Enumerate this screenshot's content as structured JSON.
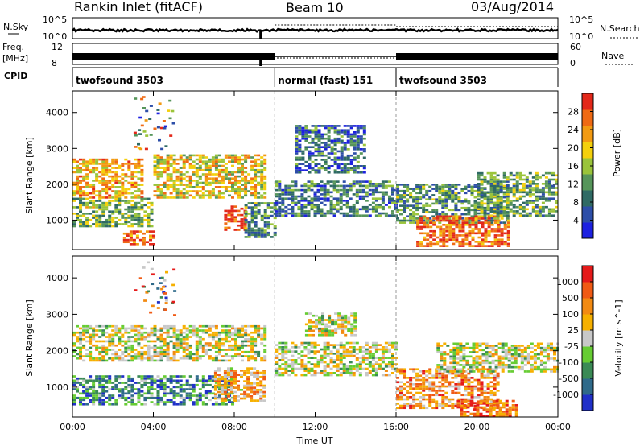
{
  "header": {
    "station": "Rankin Inlet (fitACF)",
    "beam": "Beam 10",
    "date": "03/Aug/2014"
  },
  "strip_labels": {
    "nsky": "N.Sky",
    "freq": "Freq.",
    "freq_unit": "[MHz]",
    "cpid": "CPID",
    "nsearch": "N.Search",
    "nave": "Nave"
  },
  "strip_ticks": {
    "nsky_left": [
      "10^5",
      "10^0"
    ],
    "nsky_right": [
      "10^5",
      "10^0"
    ],
    "freq_left": [
      "12",
      "8"
    ],
    "nave_right": [
      "60",
      "0"
    ]
  },
  "modes": [
    {
      "name": "twofsound 3503",
      "start": 0,
      "end": 10
    },
    {
      "name": "normal (fast) 151",
      "start": 10,
      "end": 16
    },
    {
      "name": "twofsound 3503",
      "start": 16,
      "end": 24
    }
  ],
  "chart_data": [
    {
      "type": "heatmap",
      "title": "Power",
      "xlabel": "",
      "ylabel": "Slant Range [km]",
      "xlim": [
        0,
        24
      ],
      "ylim": [
        180,
        4600
      ],
      "xticks": [
        0,
        4,
        8,
        12,
        16,
        20,
        24
      ],
      "yticks": [
        1000,
        2000,
        3000,
        4000
      ],
      "colorbar": {
        "label": "Power [dB]",
        "range": [
          0,
          32
        ],
        "ticks": [
          "4",
          "8",
          "12",
          "16",
          "20",
          "24",
          "28"
        ],
        "colors": [
          "#1d21e0",
          "#2d4ea8",
          "#2f6a64",
          "#56955a",
          "#9ac43a",
          "#f4d00c",
          "#f29a12",
          "#ef6a14",
          "#e3281a"
        ]
      },
      "echo_regions": [
        {
          "hours": [
            0.0,
            3.5
          ],
          "range_km": [
            1600,
            2700
          ],
          "level": 0.7
        },
        {
          "hours": [
            0.0,
            4.0
          ],
          "range_km": [
            800,
            1600
          ],
          "level": 0.45
        },
        {
          "hours": [
            2.5,
            4.0
          ],
          "range_km": [
            300,
            700
          ],
          "level": 0.85
        },
        {
          "hours": [
            4.0,
            9.5
          ],
          "range_km": [
            1600,
            2800
          ],
          "level": 0.6
        },
        {
          "hours": [
            7.5,
            8.5
          ],
          "range_km": [
            700,
            1400
          ],
          "level": 0.9
        },
        {
          "hours": [
            8.5,
            10.0
          ],
          "range_km": [
            500,
            1500
          ],
          "level": 0.35
        },
        {
          "hours": [
            10.0,
            16.0
          ],
          "range_km": [
            1100,
            2100
          ],
          "level": 0.3
        },
        {
          "hours": [
            11.0,
            14.5
          ],
          "range_km": [
            2300,
            3600
          ],
          "level": 0.25
        },
        {
          "hours": [
            16.0,
            21.5
          ],
          "range_km": [
            900,
            2000
          ],
          "level": 0.35
        },
        {
          "hours": [
            17.0,
            21.5
          ],
          "range_km": [
            250,
            1100
          ],
          "level": 0.85
        },
        {
          "hours": [
            20.0,
            24.0
          ],
          "range_km": [
            1100,
            2300
          ],
          "level": 0.4
        }
      ]
    },
    {
      "type": "heatmap",
      "title": "Velocity",
      "xlabel": "Time UT",
      "ylabel": "Slant Range [km]",
      "xlim": [
        0,
        24
      ],
      "ylim": [
        180,
        4600
      ],
      "xticks": [
        0,
        4,
        8,
        12,
        16,
        20,
        24
      ],
      "xtick_labels": [
        "00:00",
        "04:00",
        "08:00",
        "12:00",
        "16:00",
        "20:00",
        "00:00"
      ],
      "yticks": [
        1000,
        2000,
        3000,
        4000
      ],
      "colorbar": {
        "label": "Velocity [m s^-1]",
        "ticks": [
          "1000",
          "500",
          "100",
          "25",
          "-25",
          "-100",
          "-500",
          "-1000"
        ],
        "colors": [
          "#2030c8",
          "#2f6a8a",
          "#3a8a55",
          "#66cc33",
          "#c8c8c8",
          "#f6b000",
          "#f28a12",
          "#f05a14",
          "#e51a1a"
        ]
      },
      "echo_regions": [
        {
          "hours": [
            0.0,
            9.5
          ],
          "range_km": [
            1700,
            2700
          ],
          "level": 0.5
        },
        {
          "hours": [
            0.0,
            8.0
          ],
          "range_km": [
            500,
            1300
          ],
          "level": 0.25
        },
        {
          "hours": [
            7.0,
            9.5
          ],
          "range_km": [
            600,
            1500
          ],
          "level": 0.65
        },
        {
          "hours": [
            10.0,
            16.0
          ],
          "range_km": [
            1300,
            2200
          ],
          "level": 0.5
        },
        {
          "hours": [
            11.5,
            14.0
          ],
          "range_km": [
            2400,
            3000
          ],
          "level": 0.5
        },
        {
          "hours": [
            16.0,
            21.0
          ],
          "range_km": [
            400,
            1500
          ],
          "level": 0.7
        },
        {
          "hours": [
            19.0,
            22.0
          ],
          "range_km": [
            180,
            600
          ],
          "level": 0.8
        },
        {
          "hours": [
            18.0,
            24.0
          ],
          "range_km": [
            1400,
            2200
          ],
          "level": 0.5
        }
      ]
    }
  ]
}
